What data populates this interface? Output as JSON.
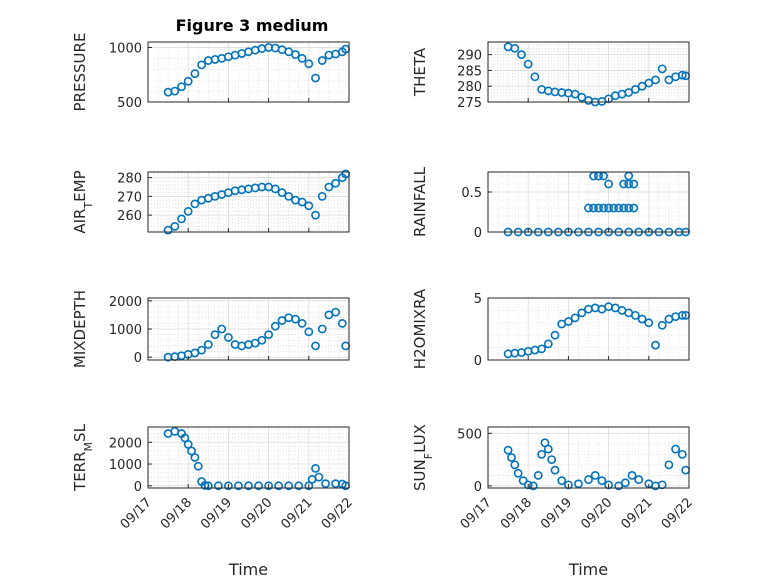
{
  "figure": {
    "title": "Figure 3 medium",
    "xlabel": "Time",
    "date_ticks": [
      "09/17",
      "09/18",
      "09/19",
      "09/20",
      "09/21",
      "09/22"
    ],
    "date_values": [
      "2024-09-17",
      "2024-09-18",
      "2024-09-19",
      "2024-09-20",
      "2024-09-21",
      "2024-09-22"
    ],
    "marker_color": "#0072BD",
    "marker": "open-circle",
    "grid": "major and minor"
  },
  "chart_data": [
    {
      "type": "scatter",
      "ylabel_parts": [
        [
          "PRESSURE",
          ""
        ]
      ],
      "ylim": [
        500,
        1050
      ],
      "yticks": [
        500,
        1000
      ],
      "yticklabels": [
        "500",
        "1000"
      ],
      "x": [
        "2024-09-17 12:00",
        "2024-09-17 16:00",
        "2024-09-17 20:00",
        "2024-09-18 00:00",
        "2024-09-18 04:00",
        "2024-09-18 08:00",
        "2024-09-18 12:00",
        "2024-09-18 16:00",
        "2024-09-18 20:00",
        "2024-09-19 00:00",
        "2024-09-19 04:00",
        "2024-09-19 08:00",
        "2024-09-19 12:00",
        "2024-09-19 16:00",
        "2024-09-19 20:00",
        "2024-09-20 00:00",
        "2024-09-20 04:00",
        "2024-09-20 08:00",
        "2024-09-20 12:00",
        "2024-09-20 16:00",
        "2024-09-20 20:00",
        "2024-09-21 00:00",
        "2024-09-21 04:00",
        "2024-09-21 08:00",
        "2024-09-21 12:00",
        "2024-09-21 16:00",
        "2024-09-21 20:00",
        "2024-09-21 22:00"
      ],
      "y": [
        590,
        600,
        640,
        690,
        760,
        840,
        880,
        890,
        900,
        915,
        930,
        945,
        960,
        975,
        990,
        1000,
        995,
        980,
        960,
        935,
        900,
        850,
        720,
        880,
        930,
        940,
        960,
        985
      ]
    },
    {
      "type": "scatter",
      "ylabel_parts": [
        [
          "THETA",
          ""
        ]
      ],
      "ylim": [
        275,
        294
      ],
      "yticks": [
        275,
        280,
        285,
        290
      ],
      "yticklabels": [
        "275",
        "280",
        "285",
        "290"
      ],
      "x": [
        "2024-09-17 12:00",
        "2024-09-17 16:00",
        "2024-09-17 20:00",
        "2024-09-18 00:00",
        "2024-09-18 04:00",
        "2024-09-18 08:00",
        "2024-09-18 12:00",
        "2024-09-18 16:00",
        "2024-09-18 20:00",
        "2024-09-19 00:00",
        "2024-09-19 04:00",
        "2024-09-19 08:00",
        "2024-09-19 12:00",
        "2024-09-19 16:00",
        "2024-09-19 20:00",
        "2024-09-20 00:00",
        "2024-09-20 04:00",
        "2024-09-20 08:00",
        "2024-09-20 12:00",
        "2024-09-20 16:00",
        "2024-09-20 20:00",
        "2024-09-21 00:00",
        "2024-09-21 04:00",
        "2024-09-21 08:00",
        "2024-09-21 12:00",
        "2024-09-21 16:00",
        "2024-09-21 20:00",
        "2024-09-21 22:00"
      ],
      "y": [
        292.5,
        292,
        290,
        287,
        283,
        279,
        278.5,
        278.2,
        278,
        277.8,
        277.5,
        276.5,
        275.5,
        275,
        275.2,
        276,
        277,
        277.5,
        278,
        279,
        280,
        281,
        282,
        285.5,
        282,
        283,
        283.5,
        283.3
      ]
    },
    {
      "type": "scatter",
      "ylabel_parts": [
        [
          "AIR",
          ""
        ],
        [
          "T",
          "sub"
        ],
        [
          "EMP",
          ""
        ]
      ],
      "ylim": [
        251,
        283
      ],
      "yticks": [
        260,
        270,
        280
      ],
      "yticklabels": [
        "260",
        "270",
        "280"
      ],
      "x": [
        "2024-09-17 12:00",
        "2024-09-17 16:00",
        "2024-09-17 20:00",
        "2024-09-18 00:00",
        "2024-09-18 04:00",
        "2024-09-18 08:00",
        "2024-09-18 12:00",
        "2024-09-18 16:00",
        "2024-09-18 20:00",
        "2024-09-19 00:00",
        "2024-09-19 04:00",
        "2024-09-19 08:00",
        "2024-09-19 12:00",
        "2024-09-19 16:00",
        "2024-09-19 20:00",
        "2024-09-20 00:00",
        "2024-09-20 04:00",
        "2024-09-20 08:00",
        "2024-09-20 12:00",
        "2024-09-20 16:00",
        "2024-09-20 20:00",
        "2024-09-21 00:00",
        "2024-09-21 04:00",
        "2024-09-21 08:00",
        "2024-09-21 12:00",
        "2024-09-21 16:00",
        "2024-09-21 20:00",
        "2024-09-21 22:00"
      ],
      "y": [
        252,
        254,
        258,
        262,
        266,
        268,
        269,
        270,
        271,
        272,
        273,
        273.5,
        274,
        274.5,
        275,
        275,
        274,
        272,
        270,
        268,
        267,
        265,
        260,
        270,
        275,
        277,
        280,
        282
      ]
    },
    {
      "type": "scatter",
      "ylabel_parts": [
        [
          "RAINFALL",
          ""
        ]
      ],
      "ylim": [
        0,
        0.75
      ],
      "yticks": [
        0,
        0.5
      ],
      "yticklabels": [
        "0",
        "0.5"
      ],
      "x": [
        "2024-09-17 12:00",
        "2024-09-17 18:00",
        "2024-09-18 00:00",
        "2024-09-18 06:00",
        "2024-09-18 12:00",
        "2024-09-18 18:00",
        "2024-09-19 00:00",
        "2024-09-19 06:00",
        "2024-09-19 12:00",
        "2024-09-19 18:00",
        "2024-09-20 00:00",
        "2024-09-20 06:00",
        "2024-09-20 12:00",
        "2024-09-20 18:00",
        "2024-09-21 00:00",
        "2024-09-21 06:00",
        "2024-09-21 12:00",
        "2024-09-21 18:00",
        "2024-09-21 22:00",
        "2024-09-19 12:00",
        "2024-09-19 15:00",
        "2024-09-19 18:00",
        "2024-09-19 21:00",
        "2024-09-20 00:00",
        "2024-09-20 03:00",
        "2024-09-20 06:00",
        "2024-09-20 09:00",
        "2024-09-20 12:00",
        "2024-09-20 15:00",
        "2024-09-19 18:00",
        "2024-09-19 21:00",
        "2024-09-20 00:00",
        "2024-09-20 09:00",
        "2024-09-20 12:00",
        "2024-09-20 15:00",
        "2024-09-19 15:00",
        "2024-09-20 12:00"
      ],
      "y": [
        0,
        0,
        0,
        0,
        0,
        0,
        0,
        0,
        0,
        0,
        0,
        0,
        0,
        0,
        0,
        0,
        0,
        0,
        0,
        0.3,
        0.3,
        0.3,
        0.3,
        0.3,
        0.3,
        0.3,
        0.3,
        0.3,
        0.3,
        0.7,
        0.7,
        0.6,
        0.6,
        0.7,
        0.6,
        0.7,
        0.6
      ]
    },
    {
      "type": "scatter",
      "ylabel_parts": [
        [
          "MIXDEPTH",
          ""
        ]
      ],
      "ylim": [
        -100,
        2100
      ],
      "yticks": [
        0,
        1000,
        2000
      ],
      "yticklabels": [
        "0",
        "1000",
        "2000"
      ],
      "x": [
        "2024-09-17 12:00",
        "2024-09-17 16:00",
        "2024-09-17 20:00",
        "2024-09-18 00:00",
        "2024-09-18 04:00",
        "2024-09-18 08:00",
        "2024-09-18 12:00",
        "2024-09-18 16:00",
        "2024-09-18 20:00",
        "2024-09-19 00:00",
        "2024-09-19 04:00",
        "2024-09-19 08:00",
        "2024-09-19 12:00",
        "2024-09-19 16:00",
        "2024-09-19 20:00",
        "2024-09-20 00:00",
        "2024-09-20 04:00",
        "2024-09-20 08:00",
        "2024-09-20 12:00",
        "2024-09-20 16:00",
        "2024-09-20 20:00",
        "2024-09-21 00:00",
        "2024-09-21 04:00",
        "2024-09-21 08:00",
        "2024-09-21 12:00",
        "2024-09-21 16:00",
        "2024-09-21 20:00",
        "2024-09-21 22:00"
      ],
      "y": [
        0,
        20,
        50,
        100,
        150,
        250,
        450,
        800,
        1000,
        700,
        450,
        400,
        450,
        500,
        600,
        800,
        1100,
        1300,
        1400,
        1350,
        1200,
        900,
        400,
        1000,
        1500,
        1600,
        1200,
        400
      ]
    },
    {
      "type": "scatter",
      "ylabel_parts": [
        [
          "H2OMIXRA",
          ""
        ]
      ],
      "ylim": [
        0,
        5
      ],
      "yticks": [
        0,
        5
      ],
      "yticklabels": [
        "0",
        "5"
      ],
      "x": [
        "2024-09-17 12:00",
        "2024-09-17 16:00",
        "2024-09-17 20:00",
        "2024-09-18 00:00",
        "2024-09-18 04:00",
        "2024-09-18 08:00",
        "2024-09-18 12:00",
        "2024-09-18 16:00",
        "2024-09-18 20:00",
        "2024-09-19 00:00",
        "2024-09-19 04:00",
        "2024-09-19 08:00",
        "2024-09-19 12:00",
        "2024-09-19 16:00",
        "2024-09-19 20:00",
        "2024-09-20 00:00",
        "2024-09-20 04:00",
        "2024-09-20 08:00",
        "2024-09-20 12:00",
        "2024-09-20 16:00",
        "2024-09-20 20:00",
        "2024-09-21 00:00",
        "2024-09-21 04:00",
        "2024-09-21 08:00",
        "2024-09-21 12:00",
        "2024-09-21 16:00",
        "2024-09-21 20:00",
        "2024-09-21 22:00"
      ],
      "y": [
        0.5,
        0.55,
        0.6,
        0.7,
        0.8,
        0.9,
        1.3,
        2,
        2.9,
        3.1,
        3.4,
        3.8,
        4.1,
        4.2,
        4.1,
        4.3,
        4.2,
        4,
        3.8,
        3.6,
        3.3,
        3,
        1.2,
        2.8,
        3.3,
        3.5,
        3.6,
        3.6
      ]
    },
    {
      "type": "scatter",
      "ylabel_parts": [
        [
          "TERR",
          ""
        ],
        [
          "M",
          "sub"
        ],
        [
          "SL",
          ""
        ]
      ],
      "ylim": [
        -100,
        2700
      ],
      "yticks": [
        0,
        1000,
        2000
      ],
      "yticklabels": [
        "0",
        "1000",
        "2000"
      ],
      "x": [
        "2024-09-17 12:00",
        "2024-09-17 16:00",
        "2024-09-17 20:00",
        "2024-09-17 22:00",
        "2024-09-18 00:00",
        "2024-09-18 02:00",
        "2024-09-18 04:00",
        "2024-09-18 06:00",
        "2024-09-18 08:00",
        "2024-09-18 10:00",
        "2024-09-18 12:00",
        "2024-09-18 18:00",
        "2024-09-19 00:00",
        "2024-09-19 06:00",
        "2024-09-19 12:00",
        "2024-09-19 18:00",
        "2024-09-20 00:00",
        "2024-09-20 06:00",
        "2024-09-20 12:00",
        "2024-09-20 18:00",
        "2024-09-21 00:00",
        "2024-09-21 02:00",
        "2024-09-21 04:00",
        "2024-09-21 06:00",
        "2024-09-21 10:00",
        "2024-09-21 16:00",
        "2024-09-21 20:00",
        "2024-09-21 22:00"
      ],
      "y": [
        2400,
        2500,
        2400,
        2200,
        1900,
        1600,
        1300,
        900,
        200,
        20,
        0,
        0,
        0,
        0,
        0,
        0,
        0,
        0,
        0,
        0,
        0,
        300,
        800,
        400,
        100,
        100,
        80,
        0
      ]
    },
    {
      "type": "scatter",
      "ylabel_parts": [
        [
          "SUN",
          ""
        ],
        [
          "F",
          "sub"
        ],
        [
          "LUX",
          ""
        ]
      ],
      "ylim": [
        -20,
        560
      ],
      "yticks": [
        0,
        500
      ],
      "yticklabels": [
        "0",
        "500"
      ],
      "x": [
        "2024-09-17 12:00",
        "2024-09-17 14:00",
        "2024-09-17 16:00",
        "2024-09-17 18:00",
        "2024-09-17 21:00",
        "2024-09-18 00:00",
        "2024-09-18 03:00",
        "2024-09-18 06:00",
        "2024-09-18 08:00",
        "2024-09-18 10:00",
        "2024-09-18 12:00",
        "2024-09-18 14:00",
        "2024-09-18 16:00",
        "2024-09-18 20:00",
        "2024-09-19 00:00",
        "2024-09-19 06:00",
        "2024-09-19 12:00",
        "2024-09-19 16:00",
        "2024-09-19 20:00",
        "2024-09-20 00:00",
        "2024-09-20 06:00",
        "2024-09-20 10:00",
        "2024-09-20 14:00",
        "2024-09-20 18:00",
        "2024-09-21 00:00",
        "2024-09-21 04:00",
        "2024-09-21 08:00",
        "2024-09-21 12:00",
        "2024-09-21 16:00",
        "2024-09-21 20:00",
        "2024-09-21 22:00"
      ],
      "y": [
        340,
        270,
        200,
        120,
        50,
        10,
        0,
        100,
        300,
        410,
        350,
        250,
        150,
        50,
        10,
        20,
        60,
        100,
        50,
        10,
        0,
        30,
        100,
        60,
        20,
        0,
        10,
        200,
        350,
        300,
        150
      ]
    }
  ]
}
